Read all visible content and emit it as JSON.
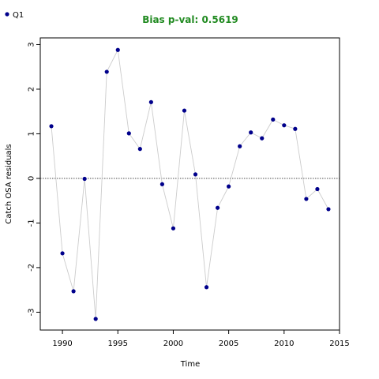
{
  "chart_data": {
    "type": "scatter",
    "title": "Bias p-val: 0.5619",
    "title_color": "#228B22",
    "xlabel": "Time",
    "ylabel": "Catch OSA residuals",
    "xlim": [
      1988,
      2015
    ],
    "ylim": [
      -3.4,
      3.15
    ],
    "xticks": [
      1990,
      1995,
      2000,
      2005,
      2010,
      2015
    ],
    "yticks": [
      -3,
      -2,
      -1,
      0,
      1,
      2,
      3
    ],
    "reference_line": 0,
    "legend_position": "top-left",
    "grid": false,
    "point_color": "#00008B",
    "line_color": "#cccccc",
    "series": [
      {
        "name": "Q1",
        "x": [
          1989,
          1990,
          1991,
          1992,
          1993,
          1994,
          1995,
          1996,
          1997,
          1998,
          1999,
          2000,
          2001,
          2002,
          2003,
          2004,
          2005,
          2006,
          2007,
          2008,
          2009,
          2010,
          2011,
          2012,
          2013,
          2014
        ],
        "y": [
          1.17,
          -1.68,
          -2.53,
          -0.01,
          -3.15,
          2.39,
          2.88,
          1.01,
          0.66,
          1.71,
          -0.13,
          -1.12,
          1.52,
          0.09,
          -2.44,
          -0.66,
          -0.18,
          0.72,
          1.03,
          0.9,
          1.32,
          1.19,
          1.11,
          -0.46,
          -0.24,
          -0.69
        ]
      }
    ]
  }
}
